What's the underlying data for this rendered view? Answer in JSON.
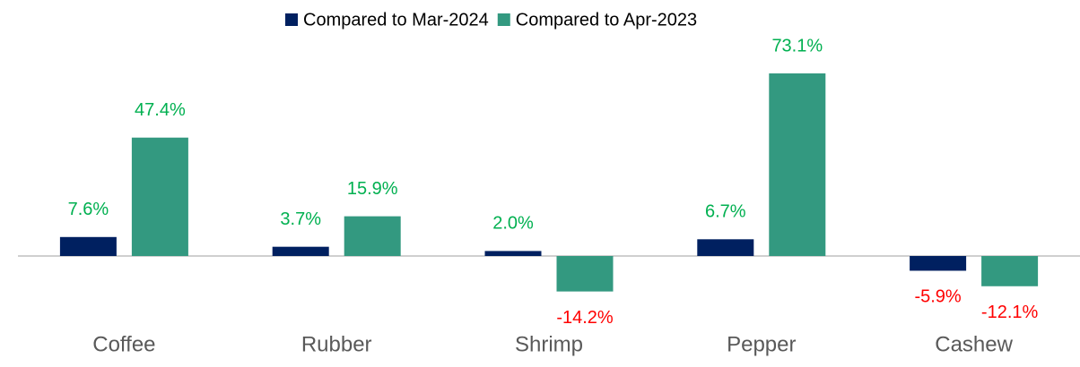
{
  "chart_data": {
    "type": "bar",
    "categories": [
      "Coffee",
      "Rubber",
      "Shrimp",
      "Pepper",
      "Cashew"
    ],
    "series": [
      {
        "name": "Compared to Mar-2024",
        "color": "#002060",
        "values": [
          7.6,
          3.7,
          2.0,
          6.7,
          -5.9
        ],
        "value_labels": [
          "7.6%",
          "3.7%",
          "2.0%",
          "6.7%",
          "-5.9%"
        ]
      },
      {
        "name": "Compared to Apr-2023",
        "color": "#339980",
        "values": [
          47.4,
          15.9,
          -14.2,
          73.1,
          -12.1
        ],
        "value_labels": [
          "47.4%",
          "15.9%",
          "-14.2%",
          "73.1%",
          "-12.1%"
        ]
      }
    ],
    "positive_label_color": "#00b050",
    "negative_label_color": "#ff0000",
    "legend": "top"
  }
}
